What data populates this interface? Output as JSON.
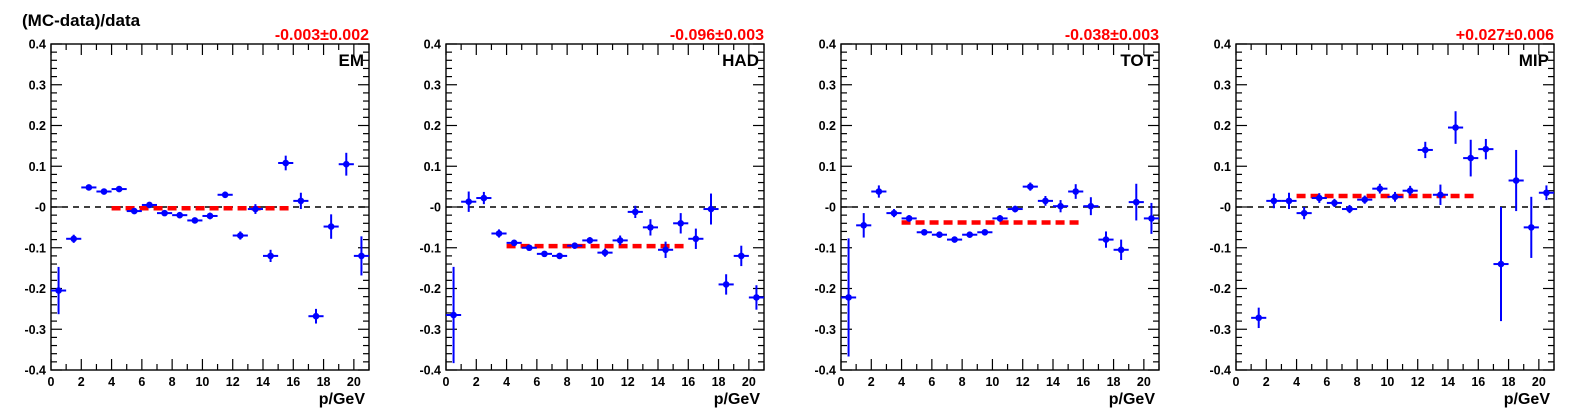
{
  "y_axis_title": "(MC-data)/data",
  "x_axis_title": "p/GeV",
  "colors": {
    "points": "#0000ff",
    "fit": "#ff0000",
    "zero_line": "#000000"
  },
  "chart_data": [
    {
      "type": "scatter",
      "label": "EM",
      "fit_label": "-0.003±0.002",
      "fit_value": -0.003,
      "fit_range": [
        4,
        16
      ],
      "xlabel": "p/GeV",
      "ylabel": "(MC-data)/data",
      "xlim": [
        0,
        21
      ],
      "ylim": [
        -0.4,
        0.4
      ],
      "xticks": [
        0,
        2,
        4,
        6,
        8,
        10,
        12,
        14,
        16,
        18,
        20
      ],
      "yticks": [
        -0.4,
        -0.3,
        -0.2,
        -0.1,
        0,
        0.1,
        0.2,
        0.3,
        0.4
      ],
      "ytick_labels": [
        "-0.4",
        "-0.3",
        "-0.2",
        "-0.1",
        "-0",
        "0.1",
        "0.2",
        "0.3",
        "0.4"
      ],
      "points": [
        {
          "x": 0.5,
          "y": -0.205,
          "err": 0.058
        },
        {
          "x": 1.5,
          "y": -0.078,
          "err": 0.01
        },
        {
          "x": 2.5,
          "y": 0.048,
          "err": 0.006
        },
        {
          "x": 3.5,
          "y": 0.038,
          "err": 0.005
        },
        {
          "x": 4.5,
          "y": 0.044,
          "err": 0.005
        },
        {
          "x": 5.5,
          "y": -0.01,
          "err": 0.005
        },
        {
          "x": 6.5,
          "y": 0.005,
          "err": 0.005
        },
        {
          "x": 7.5,
          "y": -0.015,
          "err": 0.005
        },
        {
          "x": 8.5,
          "y": -0.02,
          "err": 0.006
        },
        {
          "x": 9.5,
          "y": -0.033,
          "err": 0.006
        },
        {
          "x": 10.5,
          "y": -0.022,
          "err": 0.008
        },
        {
          "x": 11.5,
          "y": 0.03,
          "err": 0.008
        },
        {
          "x": 12.5,
          "y": -0.07,
          "err": 0.01
        },
        {
          "x": 13.5,
          "y": -0.005,
          "err": 0.012
        },
        {
          "x": 14.5,
          "y": -0.12,
          "err": 0.015
        },
        {
          "x": 15.5,
          "y": 0.108,
          "err": 0.018
        },
        {
          "x": 16.5,
          "y": 0.015,
          "err": 0.02
        },
        {
          "x": 17.5,
          "y": -0.268,
          "err": 0.018
        },
        {
          "x": 18.5,
          "y": -0.048,
          "err": 0.03
        },
        {
          "x": 19.5,
          "y": 0.105,
          "err": 0.028
        },
        {
          "x": 20.5,
          "y": -0.12,
          "err": 0.048
        }
      ]
    },
    {
      "type": "scatter",
      "label": "HAD",
      "fit_label": "-0.096±0.003",
      "fit_value": -0.096,
      "fit_range": [
        4,
        16
      ],
      "xlabel": "p/GeV",
      "ylabel": "",
      "xlim": [
        0,
        21
      ],
      "ylim": [
        -0.4,
        0.4
      ],
      "xticks": [
        0,
        2,
        4,
        6,
        8,
        10,
        12,
        14,
        16,
        18,
        20
      ],
      "yticks": [
        -0.4,
        -0.3,
        -0.2,
        -0.1,
        0,
        0.1,
        0.2,
        0.3,
        0.4
      ],
      "ytick_labels": [
        "-0.4",
        "-0.3",
        "-0.2",
        "-0.1",
        "-0",
        "0.1",
        "0.2",
        "0.3",
        "0.4"
      ],
      "points": [
        {
          "x": 0.5,
          "y": -0.265,
          "err": 0.118
        },
        {
          "x": 1.5,
          "y": 0.013,
          "err": 0.025
        },
        {
          "x": 2.5,
          "y": 0.022,
          "err": 0.015
        },
        {
          "x": 3.5,
          "y": -0.065,
          "err": 0.01
        },
        {
          "x": 4.5,
          "y": -0.088,
          "err": 0.006
        },
        {
          "x": 5.5,
          "y": -0.1,
          "err": 0.005
        },
        {
          "x": 6.5,
          "y": -0.115,
          "err": 0.005
        },
        {
          "x": 7.5,
          "y": -0.12,
          "err": 0.005
        },
        {
          "x": 8.5,
          "y": -0.095,
          "err": 0.006
        },
        {
          "x": 9.5,
          "y": -0.082,
          "err": 0.008
        },
        {
          "x": 10.5,
          "y": -0.112,
          "err": 0.01
        },
        {
          "x": 11.5,
          "y": -0.082,
          "err": 0.012
        },
        {
          "x": 12.5,
          "y": -0.012,
          "err": 0.015
        },
        {
          "x": 13.5,
          "y": -0.05,
          "err": 0.02
        },
        {
          "x": 14.5,
          "y": -0.105,
          "err": 0.02
        },
        {
          "x": 15.5,
          "y": -0.04,
          "err": 0.025
        },
        {
          "x": 16.5,
          "y": -0.078,
          "err": 0.025
        },
        {
          "x": 17.5,
          "y": -0.005,
          "err": 0.038
        },
        {
          "x": 18.5,
          "y": -0.19,
          "err": 0.025
        },
        {
          "x": 19.5,
          "y": -0.12,
          "err": 0.025
        },
        {
          "x": 20.5,
          "y": -0.222,
          "err": 0.03
        }
      ]
    },
    {
      "type": "scatter",
      "label": "TOT",
      "fit_label": "-0.038±0.003",
      "fit_value": -0.038,
      "fit_range": [
        4,
        16
      ],
      "xlabel": "p/GeV",
      "ylabel": "",
      "xlim": [
        0,
        21
      ],
      "ylim": [
        -0.4,
        0.4
      ],
      "xticks": [
        0,
        2,
        4,
        6,
        8,
        10,
        12,
        14,
        16,
        18,
        20
      ],
      "yticks": [
        -0.4,
        -0.3,
        -0.2,
        -0.1,
        0,
        0.1,
        0.2,
        0.3,
        0.4
      ],
      "ytick_labels": [
        "-0.4",
        "-0.3",
        "-0.2",
        "-0.1",
        "-0",
        "0.1",
        "0.2",
        "0.3",
        "0.4"
      ],
      "points": [
        {
          "x": 0.5,
          "y": -0.222,
          "err": 0.145
        },
        {
          "x": 1.5,
          "y": -0.045,
          "err": 0.03
        },
        {
          "x": 2.5,
          "y": 0.038,
          "err": 0.015
        },
        {
          "x": 3.5,
          "y": -0.015,
          "err": 0.01
        },
        {
          "x": 4.5,
          "y": -0.028,
          "err": 0.008
        },
        {
          "x": 5.5,
          "y": -0.062,
          "err": 0.005
        },
        {
          "x": 6.5,
          "y": -0.068,
          "err": 0.005
        },
        {
          "x": 7.5,
          "y": -0.08,
          "err": 0.005
        },
        {
          "x": 8.5,
          "y": -0.068,
          "err": 0.005
        },
        {
          "x": 9.5,
          "y": -0.062,
          "err": 0.006
        },
        {
          "x": 10.5,
          "y": -0.028,
          "err": 0.008
        },
        {
          "x": 11.5,
          "y": -0.005,
          "err": 0.008
        },
        {
          "x": 12.5,
          "y": 0.05,
          "err": 0.01
        },
        {
          "x": 13.5,
          "y": 0.015,
          "err": 0.012
        },
        {
          "x": 14.5,
          "y": 0.002,
          "err": 0.015
        },
        {
          "x": 15.5,
          "y": 0.038,
          "err": 0.018
        },
        {
          "x": 16.5,
          "y": 0.002,
          "err": 0.022
        },
        {
          "x": 17.5,
          "y": -0.08,
          "err": 0.02
        },
        {
          "x": 18.5,
          "y": -0.105,
          "err": 0.025
        },
        {
          "x": 19.5,
          "y": 0.012,
          "err": 0.045
        },
        {
          "x": 20.5,
          "y": -0.028,
          "err": 0.038
        }
      ]
    },
    {
      "type": "scatter",
      "label": "MIP",
      "fit_label": "+0.027±0.006",
      "fit_value": 0.027,
      "fit_range": [
        4,
        16
      ],
      "xlabel": "p/GeV",
      "ylabel": "",
      "xlim": [
        0,
        21
      ],
      "ylim": [
        -0.4,
        0.4
      ],
      "xticks": [
        0,
        2,
        4,
        6,
        8,
        10,
        12,
        14,
        16,
        18,
        20
      ],
      "yticks": [
        -0.4,
        -0.3,
        -0.2,
        -0.1,
        0,
        0.1,
        0.2,
        0.3,
        0.4
      ],
      "ytick_labels": [
        "-0.4",
        "-0.3",
        "-0.2",
        "-0.1",
        "-0",
        "0.1",
        "0.2",
        "0.3",
        "0.4"
      ],
      "points": [
        {
          "x": 1.5,
          "y": -0.272,
          "err": 0.025
        },
        {
          "x": 2.5,
          "y": 0.015,
          "err": 0.018
        },
        {
          "x": 3.5,
          "y": 0.015,
          "err": 0.02
        },
        {
          "x": 4.5,
          "y": -0.015,
          "err": 0.015
        },
        {
          "x": 5.5,
          "y": 0.022,
          "err": 0.012
        },
        {
          "x": 6.5,
          "y": 0.01,
          "err": 0.01
        },
        {
          "x": 7.5,
          "y": -0.005,
          "err": 0.01
        },
        {
          "x": 8.5,
          "y": 0.018,
          "err": 0.01
        },
        {
          "x": 9.5,
          "y": 0.045,
          "err": 0.012
        },
        {
          "x": 10.5,
          "y": 0.025,
          "err": 0.012
        },
        {
          "x": 11.5,
          "y": 0.04,
          "err": 0.012
        },
        {
          "x": 12.5,
          "y": 0.14,
          "err": 0.02
        },
        {
          "x": 13.5,
          "y": 0.03,
          "err": 0.025
        },
        {
          "x": 14.5,
          "y": 0.195,
          "err": 0.04
        },
        {
          "x": 15.5,
          "y": 0.12,
          "err": 0.045
        },
        {
          "x": 16.5,
          "y": 0.142,
          "err": 0.025
        },
        {
          "x": 17.5,
          "y": -0.14,
          "err": 0.14
        },
        {
          "x": 18.5,
          "y": 0.065,
          "err": 0.075
        },
        {
          "x": 19.5,
          "y": -0.05,
          "err": 0.075
        },
        {
          "x": 20.5,
          "y": 0.035,
          "err": 0.018
        }
      ]
    }
  ]
}
